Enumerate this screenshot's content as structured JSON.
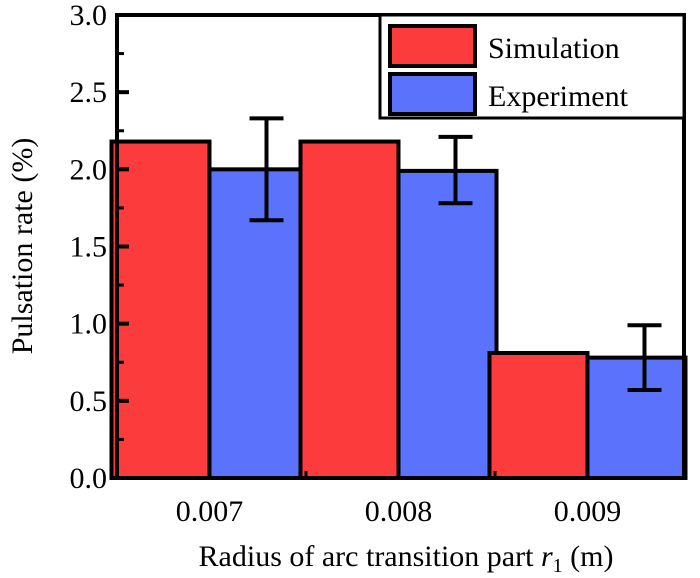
{
  "chart_data": {
    "type": "bar",
    "title": "",
    "xlabel": "Radius of arc transition part",
    "xlabel_var": "r",
    "xlabel_sub": "1",
    "xlabel_unit": "(m)",
    "ylabel": "Pulsation rate (%)",
    "ylim": [
      0,
      3.0
    ],
    "yticks": [
      "0.0",
      "0.5",
      "1.0",
      "1.5",
      "2.0",
      "2.5",
      "3.0"
    ],
    "ytick_values": [
      0,
      0.5,
      1.0,
      1.5,
      2.0,
      2.5,
      3.0
    ],
    "categories": [
      "0.007",
      "0.008",
      "0.009"
    ],
    "series": [
      {
        "name": "Simulation",
        "color": "#fc3c3c",
        "values": [
          2.18,
          2.18,
          0.81
        ]
      },
      {
        "name": "Experiment",
        "color": "#5b73fc",
        "values": [
          2.0,
          1.99,
          0.78
        ],
        "error_upper": [
          2.33,
          2.21,
          0.99
        ],
        "error_lower": [
          1.67,
          1.78,
          0.57
        ]
      }
    ],
    "legend_position": "top-right",
    "grid": false
  }
}
